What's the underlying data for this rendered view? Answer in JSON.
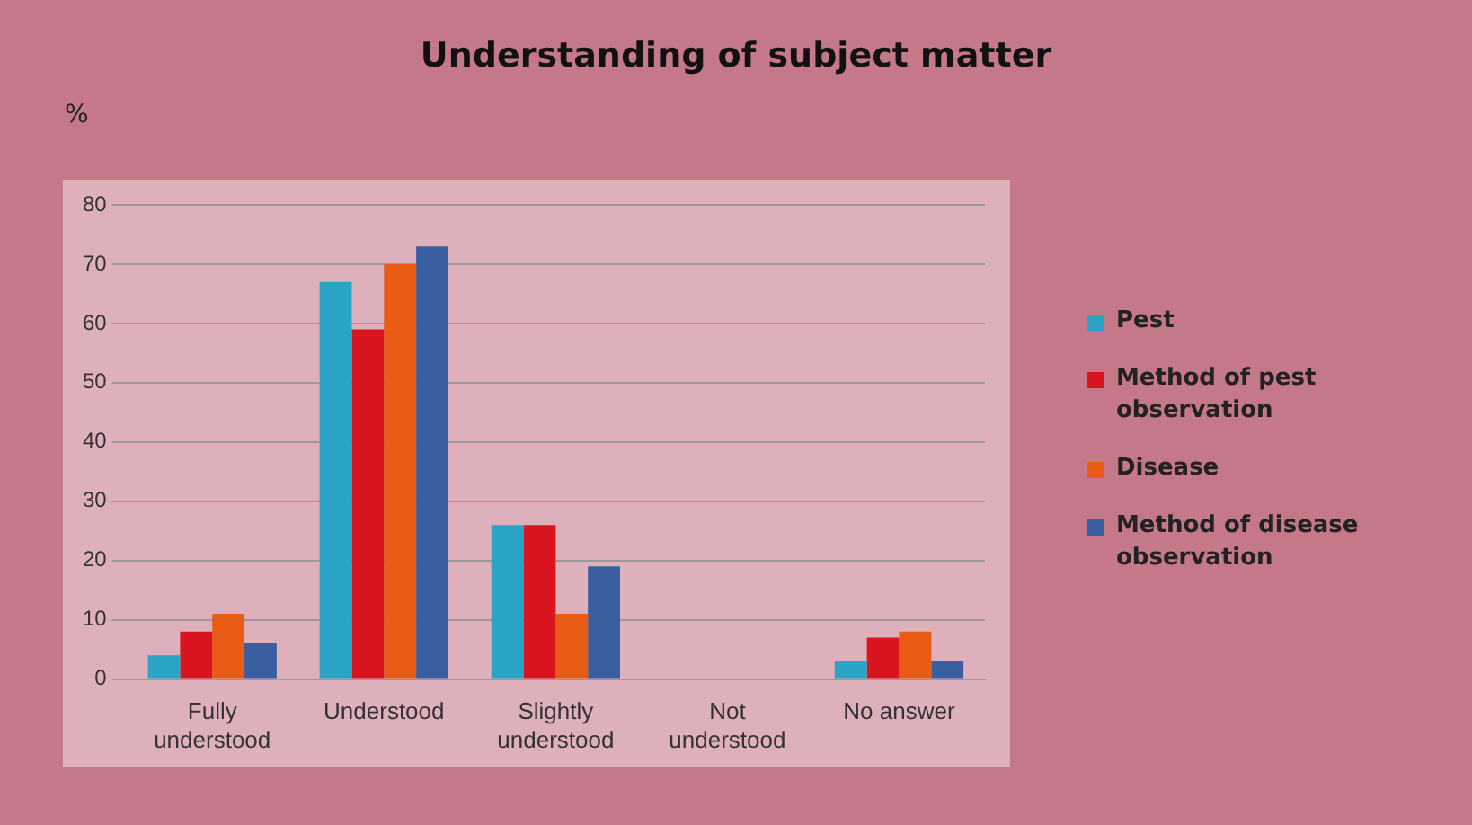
{
  "chart_data": {
    "type": "bar",
    "title": "Understanding of subject matter",
    "ylabel": "%",
    "categories": [
      "Fully\nunderstood",
      "Understood",
      "Slightly\nunderstood",
      "Not\nunderstood",
      "No answer"
    ],
    "series": [
      {
        "name": "Pest",
        "color": "#2aa3c4",
        "values": [
          4,
          67,
          26,
          0,
          3
        ]
      },
      {
        "name": "Method of pest observation",
        "color": "#d9161f",
        "values": [
          8,
          59,
          26,
          0,
          7
        ]
      },
      {
        "name": "Disease",
        "color": "#e85c16",
        "values": [
          11,
          70,
          11,
          0,
          8
        ]
      },
      {
        "name": "Method of disease observation",
        "color": "#3a5fa0",
        "values": [
          6,
          73,
          19,
          0,
          3
        ]
      }
    ],
    "ylim": [
      0,
      80
    ],
    "yticks": [
      0,
      10,
      20,
      30,
      40,
      50,
      60,
      70,
      80
    ],
    "grid": "y",
    "legend": "right"
  }
}
